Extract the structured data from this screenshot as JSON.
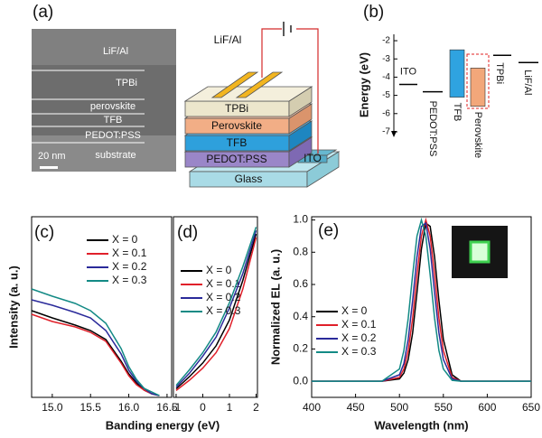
{
  "panel_a": {
    "panel_label": "(a)",
    "tem_labels": [
      "LiF/Al",
      "TPBi",
      "perovskite",
      "TFB",
      "PEDOT:PSS",
      "substrate"
    ],
    "scale_bar": "20 nm",
    "schematic_labels": {
      "electrode": "LiF/Al",
      "tpbi": "TPBi",
      "perovskite": "Perovskite",
      "tfb": "TFB",
      "pedot": "PEDOT:PSS",
      "ito": "ITO",
      "glass": "Glass"
    }
  },
  "chart_data": [
    {
      "type": "energy",
      "panel_label": "(b)",
      "ylabel": "Energy (eV)",
      "ylim": [
        -1.65,
        -7.2
      ],
      "yticks": [
        -2,
        -3,
        -4,
        -5,
        -6,
        -7
      ],
      "lines": [
        {
          "name": "ITO",
          "value": -4.4
        },
        {
          "name": "PEDOT:PSS",
          "value": -4.8
        },
        {
          "name": "TPBi",
          "value": -2.8
        },
        {
          "name": "LiF/Al",
          "value": -3.2
        }
      ],
      "bands": [
        {
          "name": "TFB",
          "lumo": -2.5,
          "homo": -5.1,
          "color": "#2fa3e0"
        },
        {
          "name": "Perovskite",
          "lumo": -3.5,
          "homo": -5.6,
          "color": "#f2a77a"
        }
      ]
    },
    {
      "type": "line",
      "panel_label": "(c)",
      "ylabel": "Intensity (a. u.)",
      "xlim": [
        14.73,
        16.56
      ],
      "xticks": [
        {
          "value": 15,
          "label": "15.0"
        },
        {
          "value": 15.5,
          "label": "15.5"
        },
        {
          "value": 16,
          "label": "16.0"
        },
        {
          "value": 16.5,
          "label": "16.5"
        }
      ],
      "ylim": [
        0,
        1
      ],
      "legend": "upper right",
      "x": [
        14.73,
        15.0,
        15.3,
        15.5,
        15.7,
        15.9,
        16.0,
        16.1,
        16.2,
        16.3,
        16.4
      ],
      "series": [
        {
          "name": "X = 0",
          "color": "#000000",
          "values": [
            0.48,
            0.44,
            0.4,
            0.37,
            0.32,
            0.2,
            0.13,
            0.08,
            0.04,
            0.02,
            0.01
          ]
        },
        {
          "name": "X = 0.1",
          "color": "#e0202a",
          "values": [
            0.46,
            0.42,
            0.39,
            0.36,
            0.31,
            0.19,
            0.12,
            0.07,
            0.04,
            0.02,
            0.01
          ]
        },
        {
          "name": "X = 0.2",
          "color": "#2a2a9a",
          "values": [
            0.54,
            0.51,
            0.47,
            0.44,
            0.37,
            0.24,
            0.15,
            0.09,
            0.05,
            0.02,
            0.01
          ]
        },
        {
          "name": "X = 0.3",
          "color": "#138a85",
          "values": [
            0.6,
            0.56,
            0.52,
            0.48,
            0.41,
            0.27,
            0.17,
            0.1,
            0.05,
            0.03,
            0.01
          ]
        }
      ]
    },
    {
      "type": "line",
      "panel_label": "(d)",
      "xlabel": "Banding energy (eV)",
      "xlim": [
        -1.1,
        2.05
      ],
      "xticks": [
        -1,
        0,
        1,
        2
      ],
      "ylim": [
        0,
        1.05
      ],
      "legend": "upper left",
      "x": [
        -1,
        -0.5,
        0,
        0.5,
        1,
        1.5,
        2
      ],
      "series": [
        {
          "name": "X = 0",
          "color": "#000000",
          "values": [
            0.05,
            0.12,
            0.2,
            0.3,
            0.45,
            0.68,
            0.95
          ]
        },
        {
          "name": "X = 0.1",
          "color": "#e0202a",
          "values": [
            0.04,
            0.1,
            0.17,
            0.26,
            0.4,
            0.63,
            0.93
          ]
        },
        {
          "name": "X = 0.2",
          "color": "#2a2a9a",
          "values": [
            0.06,
            0.14,
            0.24,
            0.35,
            0.52,
            0.72,
            0.97
          ]
        },
        {
          "name": "X = 0.3",
          "color": "#138a85",
          "values": [
            0.07,
            0.16,
            0.26,
            0.38,
            0.55,
            0.76,
            0.99
          ]
        }
      ]
    },
    {
      "type": "line",
      "panel_label": "(e)",
      "xlabel": "Wavelength (nm)",
      "ylabel": "Normalized EL (a. u.)",
      "xlim": [
        400,
        650
      ],
      "xticks": [
        400,
        450,
        500,
        550,
        600,
        650
      ],
      "ylim": [
        -0.1,
        1.02
      ],
      "yticks": [
        {
          "value": 0,
          "label": "0.0"
        },
        0.2,
        0.4,
        0.6,
        0.8,
        {
          "value": 1,
          "label": "1.0"
        }
      ],
      "legend": "center left",
      "x": [
        400,
        450,
        480,
        500,
        505,
        510,
        515,
        520,
        525,
        530,
        535,
        540,
        545,
        550,
        560,
        570,
        600,
        650
      ],
      "series": [
        {
          "name": "X = 0",
          "color": "#000000",
          "values": [
            0,
            0,
            0,
            0.015,
            0.05,
            0.135,
            0.3,
            0.55,
            0.82,
            0.98,
            0.96,
            0.77,
            0.5,
            0.26,
            0.04,
            0,
            0,
            0
          ]
        },
        {
          "name": "X = 0.1",
          "color": "#e0202a",
          "values": [
            0,
            0,
            0,
            0.024,
            0.076,
            0.19,
            0.39,
            0.66,
            0.9,
            1.0,
            0.9,
            0.66,
            0.39,
            0.19,
            0.024,
            0,
            0,
            0
          ]
        },
        {
          "name": "X = 0.2",
          "color": "#2a2a9a",
          "values": [
            0,
            0,
            0,
            0.04,
            0.11,
            0.26,
            0.5,
            0.77,
            0.96,
            0.98,
            0.82,
            0.55,
            0.3,
            0.135,
            0.015,
            0,
            0,
            0
          ]
        },
        {
          "name": "X = 0.3",
          "color": "#138a85",
          "values": [
            0,
            0,
            0,
            0.076,
            0.19,
            0.39,
            0.66,
            0.9,
            1.0,
            0.9,
            0.66,
            0.39,
            0.19,
            0.076,
            0.006,
            0,
            0,
            0
          ]
        }
      ]
    }
  ]
}
